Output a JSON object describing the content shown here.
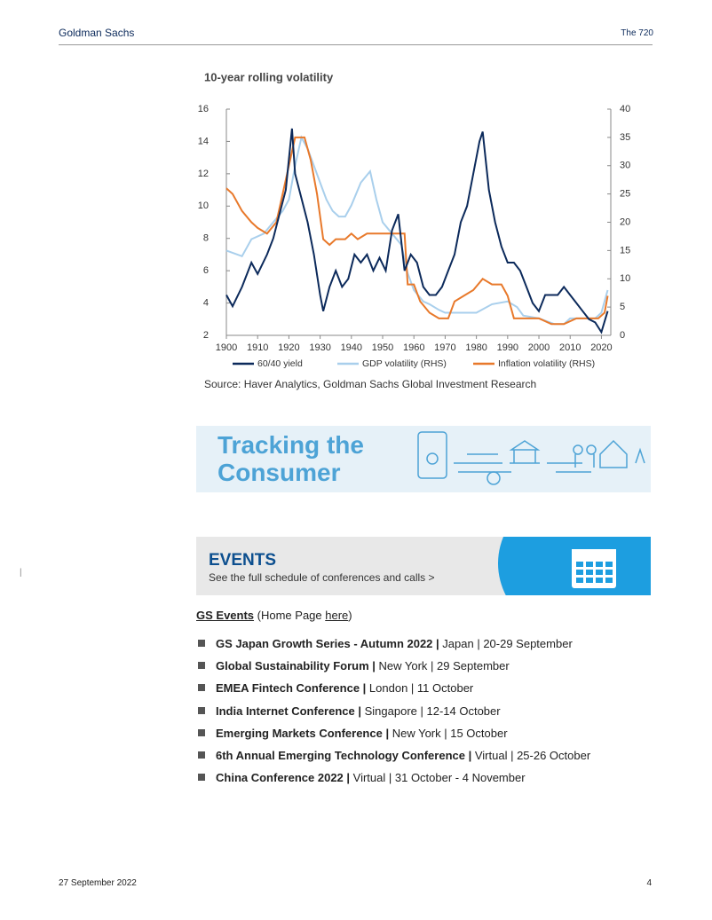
{
  "header": {
    "brand": "Goldman Sachs",
    "publication": "The 720"
  },
  "chart_data": {
    "type": "line",
    "title": "10-year rolling volatility",
    "source": "Source: Haver Analytics, Goldman Sachs Global Investment Research",
    "xlim": [
      1900,
      2023
    ],
    "xticks": [
      1900,
      1910,
      1920,
      1930,
      1940,
      1950,
      1960,
      1970,
      1980,
      1990,
      2000,
      2010,
      2020
    ],
    "ylim": [
      2,
      16
    ],
    "yticks": [
      2,
      4,
      6,
      8,
      10,
      12,
      14,
      16
    ],
    "y2lim": [
      0,
      40
    ],
    "y2ticks": [
      0,
      5,
      10,
      15,
      20,
      25,
      30,
      35,
      40
    ],
    "series": [
      {
        "name": "60/40 yield",
        "color": "#0c2a5b",
        "x": [
          1900,
          1902,
          1905,
          1908,
          1910,
          1913,
          1915,
          1917,
          1919,
          1921,
          1922,
          1924,
          1926,
          1928,
          1930,
          1931,
          1933,
          1935,
          1937,
          1939,
          1941,
          1943,
          1945,
          1947,
          1949,
          1951,
          1953,
          1955,
          1957,
          1959,
          1961,
          1963,
          1965,
          1967,
          1969,
          1971,
          1973,
          1975,
          1977,
          1979,
          1981,
          1982,
          1984,
          1986,
          1988,
          1990,
          1992,
          1994,
          1996,
          1998,
          2000,
          2002,
          2004,
          2006,
          2008,
          2010,
          2012,
          2014,
          2016,
          2018,
          2020,
          2022
        ],
        "values": [
          4.5,
          3.8,
          5,
          6.5,
          5.8,
          7,
          8,
          9.5,
          11,
          14.8,
          12,
          10.5,
          9,
          7,
          4.5,
          3.5,
          5,
          6,
          5,
          5.5,
          7,
          6.5,
          7,
          6,
          6.8,
          6,
          8.5,
          9.5,
          6,
          7,
          6.5,
          5,
          4.5,
          4.5,
          5,
          6,
          7,
          9,
          10,
          12,
          14,
          14.6,
          11,
          9,
          7.5,
          6.5,
          6.5,
          6,
          5,
          4,
          3.5,
          4.5,
          4.5,
          4.5,
          5,
          4.5,
          4,
          3.5,
          3,
          2.8,
          2.2,
          3.5
        ]
      },
      {
        "name": "GDP volatility (RHS)",
        "color": "#a9cfec",
        "axis": "y2",
        "x": [
          1900,
          1905,
          1908,
          1912,
          1915,
          1918,
          1920,
          1922,
          1924,
          1926,
          1928,
          1930,
          1932,
          1934,
          1936,
          1938,
          1940,
          1943,
          1946,
          1948,
          1950,
          1953,
          1956,
          1958,
          1960,
          1963,
          1965,
          1968,
          1970,
          1975,
          1980,
          1985,
          1990,
          1993,
          1995,
          2000,
          2005,
          2008,
          2010,
          2015,
          2018,
          2020,
          2022
        ],
        "values": [
          15,
          14,
          17,
          18,
          20,
          22,
          24,
          30,
          35,
          33,
          30,
          27,
          24,
          22,
          21,
          21,
          23,
          27,
          29,
          24,
          20,
          18,
          16,
          11,
          8,
          6,
          5.5,
          4.5,
          4,
          4,
          4,
          5.5,
          6,
          5,
          3.5,
          3,
          2,
          2,
          3,
          3,
          3,
          4,
          8
        ]
      },
      {
        "name": "Inflation volatility (RHS)",
        "color": "#e8792b",
        "axis": "y2",
        "x": [
          1900,
          1902,
          1905,
          1908,
          1910,
          1913,
          1916,
          1918,
          1920,
          1922,
          1925,
          1927,
          1929,
          1931,
          1933,
          1935,
          1938,
          1940,
          1942,
          1945,
          1948,
          1951,
          1955,
          1957,
          1958,
          1960,
          1962,
          1965,
          1968,
          1971,
          1973,
          1976,
          1979,
          1982,
          1985,
          1988,
          1990,
          1992,
          1995,
          2000,
          2004,
          2008,
          2012,
          2016,
          2019,
          2021,
          2022
        ],
        "values": [
          26,
          25,
          22,
          20,
          19,
          18,
          20,
          25,
          30,
          35,
          35,
          31,
          25,
          17,
          16,
          17,
          17,
          18,
          17,
          18,
          18,
          18,
          18,
          18,
          9,
          9,
          6,
          4,
          3,
          3,
          6,
          7,
          8,
          10,
          9,
          9,
          7,
          3,
          3,
          3,
          2,
          2,
          3,
          3,
          3,
          4,
          7
        ]
      }
    ]
  },
  "banners": {
    "consumer": {
      "line1": "Tracking the",
      "line2": "Consumer"
    },
    "events": {
      "title": "EVENTS",
      "subtitle": "See the full schedule of conferences and calls >"
    }
  },
  "gs_events": {
    "title": "GS Events",
    "before": "(Home Page ",
    "link": "here",
    "after": ")"
  },
  "events": [
    {
      "name": "GS Japan Growth Series - Autumn 2022 |",
      "details": "Japan | 20-29 September"
    },
    {
      "name": "Global Sustainability Forum |",
      "details": "New York | 29 September"
    },
    {
      "name": "EMEA Fintech Conference |",
      "details": "London | 11 October"
    },
    {
      "name": "India Internet Conference |",
      "details": "Singapore | 12-14 October"
    },
    {
      "name": "Emerging Markets Conference |",
      "details": "New York | 15 October"
    },
    {
      "name": "6th Annual Emerging Technology Conference |",
      "details": "Virtual | 25-26 October"
    },
    {
      "name": "China Conference 2022 |",
      "details": "Virtual | 31 October - 4 November"
    }
  ],
  "margin_mark": "|",
  "footer": {
    "date": "27 September 2022",
    "page": "4"
  }
}
